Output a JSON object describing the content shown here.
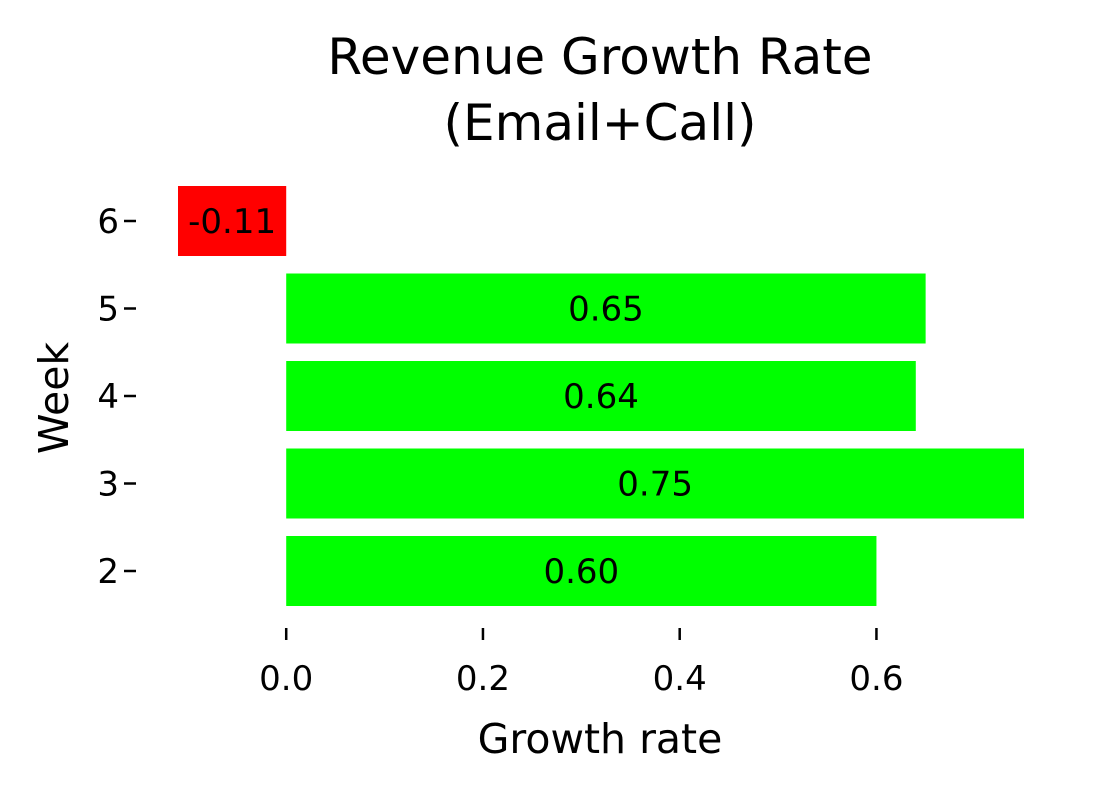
{
  "chart_data": {
    "type": "bar",
    "orientation": "horizontal",
    "title": [
      "Revenue Growth Rate",
      "(Email+Call)"
    ],
    "xlabel": "Growth rate",
    "ylabel": "Week",
    "categories": [
      "2",
      "3",
      "4",
      "5",
      "6"
    ],
    "values": [
      0.6,
      0.75,
      0.64,
      0.65,
      -0.11
    ],
    "value_labels": [
      "0.60",
      "0.75",
      "0.64",
      "0.65",
      "-0.11"
    ],
    "x_ticks": [
      0.0,
      0.2,
      0.4,
      0.6
    ],
    "x_tick_labels": [
      "0.0",
      "0.2",
      "0.4",
      "0.6"
    ],
    "xlim": [
      -0.11,
      0.75
    ],
    "grid": false,
    "legend": false,
    "colors": {
      "positive": "#00ff00",
      "negative": "#ff0000"
    }
  }
}
